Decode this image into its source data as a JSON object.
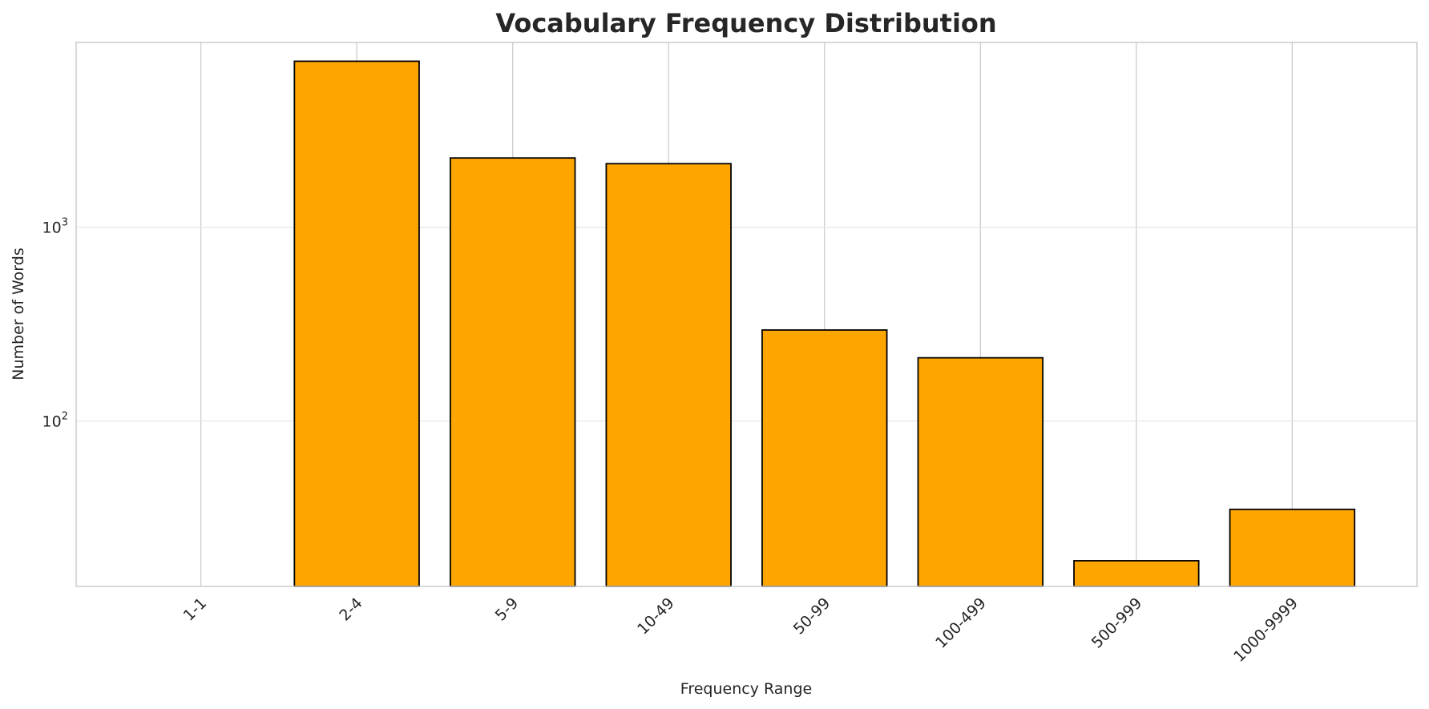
{
  "chart_data": {
    "type": "bar",
    "title": "Vocabulary Frequency Distribution",
    "xlabel": "Frequency Range",
    "ylabel": "Number of Words",
    "yscale": "log",
    "ylim": [
      14,
      9000
    ],
    "yticks": [
      {
        "value": 100,
        "base": "10",
        "exp": "2"
      },
      {
        "value": 1000,
        "base": "10",
        "exp": "3"
      }
    ],
    "categories": [
      "1-1",
      "2-4",
      "5-9",
      "10-49",
      "50-99",
      "100-499",
      "500-999",
      "1000-9999"
    ],
    "values": [
      0,
      7200,
      2280,
      2130,
      295,
      212,
      19,
      35
    ],
    "bar_color": "#FFA500",
    "bar_edge_color": "#000000",
    "grid": true,
    "grid_color": "#e6e6e6"
  }
}
